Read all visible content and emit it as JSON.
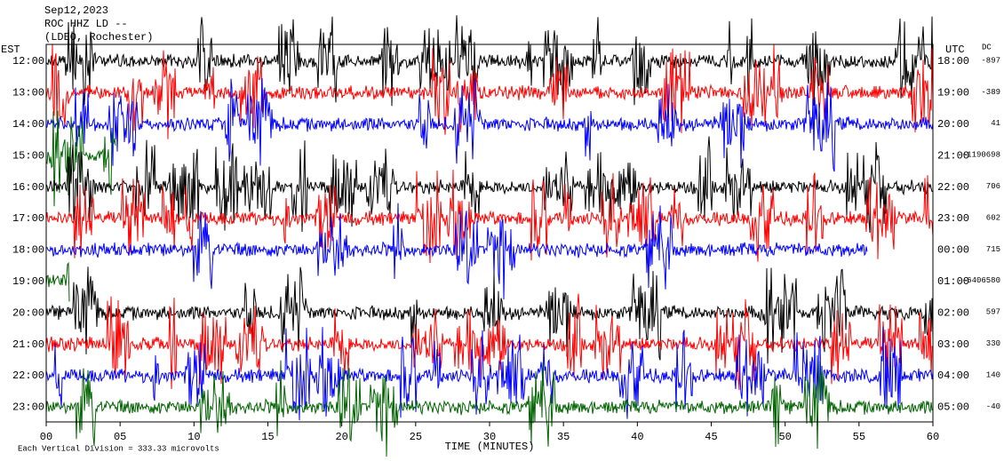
{
  "chart_data": {
    "type": "helicorder",
    "title": "Sep12,2023",
    "station": "ROC HHZ LD --",
    "network": "(LDEO, Rochester)",
    "left_axis_label": "EST",
    "right_axis_label": "UTC",
    "dc_label": "DC",
    "xlabel": "TIME (MINUTES)",
    "footnote": "Each Vertical Division = 333.33 microvolts",
    "xlim": [
      0,
      60
    ],
    "xticks": [
      {
        "value": 0,
        "label": "00"
      },
      {
        "value": 5,
        "label": "05"
      },
      10,
      15,
      20,
      25,
      30,
      35,
      40,
      45,
      50,
      55,
      60
    ],
    "rows": [
      {
        "est": "12:00",
        "utc": "18:00",
        "dc": -897,
        "color": "#000000",
        "trace_end": 60
      },
      {
        "est": "13:00",
        "utc": "19:00",
        "dc": -389,
        "color": "#ff0000",
        "trace_end": 60
      },
      {
        "est": "14:00",
        "utc": "20:00",
        "dc": 41,
        "color": "#0000ff",
        "trace_end": 60
      },
      {
        "est": "15:00",
        "utc": "21:00",
        "dc": "-1190698",
        "color": "#006400",
        "trace_end": 4.7
      },
      {
        "est": "16:00",
        "utc": "22:00",
        "dc": 706,
        "color": "#000000",
        "trace_end": 60
      },
      {
        "est": "17:00",
        "utc": "23:00",
        "dc": 602,
        "color": "#ff0000",
        "trace_end": 60
      },
      {
        "est": "18:00",
        "utc": "00:00",
        "dc": 715,
        "color": "#0000ff",
        "trace_end": 55.6
      },
      {
        "est": "19:00",
        "utc": "01:00",
        "dc": "-6406580",
        "color": "#006400",
        "trace_end": 1.6
      },
      {
        "est": "20:00",
        "utc": "02:00",
        "dc": 597,
        "color": "#000000",
        "trace_end": 60
      },
      {
        "est": "21:00",
        "utc": "03:00",
        "dc": 330,
        "color": "#ff0000",
        "trace_end": 60
      },
      {
        "est": "22:00",
        "utc": "04:00",
        "dc": 140,
        "color": "#0000ff",
        "trace_end": 60
      },
      {
        "est": "23:00",
        "utc": "05:00",
        "dc": -40,
        "color": "#006400",
        "trace_end": 60
      }
    ]
  }
}
